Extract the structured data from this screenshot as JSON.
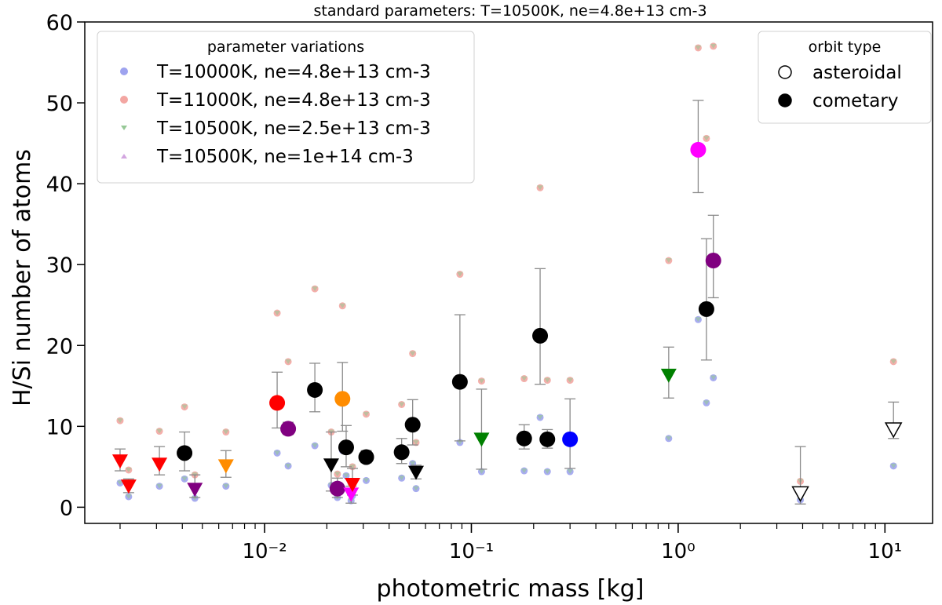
{
  "chart_data": {
    "type": "scatter",
    "title": "standard parameters: T=10500K, ne=4.8e+13 cm-3",
    "xlabel": "photometric mass [kg]",
    "ylabel": "H/Si number of atoms",
    "xscale": "log",
    "xlim": [
      0.00135,
      17
    ],
    "ylim": [
      -2,
      60
    ],
    "yticks": [
      0,
      10,
      20,
      30,
      40,
      50,
      60
    ],
    "ytick_labels": [
      "0",
      "10",
      "20",
      "30",
      "40",
      "50",
      "60"
    ],
    "xticks_major": [
      0.01,
      0.1,
      1,
      10
    ],
    "xtick_labels": [
      "10⁻²",
      "10⁻¹",
      "10⁰",
      "10¹"
    ],
    "legend_variations": {
      "title": "parameter variations",
      "placement": "top-left",
      "entries": [
        {
          "label": "T=10000K, ne=4.8e+13 cm-3",
          "color": "#9ea3ef",
          "marker": "circle"
        },
        {
          "label": "T=11000K, ne=4.8e+13 cm-3",
          "color": "#f3a6a2",
          "marker": "circle"
        },
        {
          "label": "T=10500K, ne=2.5e+13 cm-3",
          "color": "#96c896",
          "marker": "triangle-down"
        },
        {
          "label": "T=10500K, ne=1e+14 cm-3",
          "color": "#d3a6e0",
          "marker": "triangle-up"
        }
      ]
    },
    "legend_orbit": {
      "title": "orbit type",
      "placement": "top-right",
      "entries": [
        {
          "label": "asteroidal",
          "fill": "none"
        },
        {
          "label": "cometary",
          "fill": "#000000"
        }
      ]
    },
    "points": [
      {
        "x": 0.002,
        "y": 5.7,
        "color": "#ff0000",
        "marker": "down",
        "yerr": [
          4.5,
          7.2
        ],
        "var": [
          3.0,
          10.7
        ]
      },
      {
        "x": 0.0022,
        "y": 2.6,
        "color": "#ff0000",
        "marker": "down",
        "yerr": [
          1.8,
          3.5
        ],
        "var": [
          1.3,
          4.6
        ]
      },
      {
        "x": 0.0031,
        "y": 5.3,
        "color": "#ff0000",
        "marker": "down",
        "yerr": [
          4.0,
          7.5
        ],
        "var": [
          2.6,
          9.4
        ]
      },
      {
        "x": 0.0041,
        "y": 6.7,
        "color": "#000000",
        "marker": "circle",
        "yerr": [
          4.5,
          9.3
        ],
        "var": [
          3.5,
          12.4
        ]
      },
      {
        "x": 0.0046,
        "y": 2.2,
        "color": "#800080",
        "marker": "down",
        "yerr": [
          1.2,
          4.0
        ],
        "var": [
          1.1,
          4.0
        ]
      },
      {
        "x": 0.0065,
        "y": 5.1,
        "color": "#ff8c00",
        "marker": "down",
        "yerr": [
          3.7,
          7.0
        ],
        "var": [
          2.6,
          9.3
        ]
      },
      {
        "x": 0.0115,
        "y": 12.9,
        "color": "#ff0000",
        "marker": "circle",
        "yerr": [
          9.8,
          16.7
        ],
        "var": [
          6.7,
          24.0
        ]
      },
      {
        "x": 0.013,
        "y": 9.7,
        "color": "#800080",
        "marker": "circle",
        "yerr": [
          9.0,
          10.5
        ],
        "var": [
          5.1,
          18.0
        ]
      },
      {
        "x": 0.0175,
        "y": 14.5,
        "color": "#000000",
        "marker": "circle",
        "yerr": [
          11.8,
          17.8
        ],
        "var": [
          7.6,
          27.0
        ]
      },
      {
        "x": 0.021,
        "y": 5.2,
        "color": "#000000",
        "marker": "down",
        "yerr": [
          2.0,
          9.3
        ],
        "var": [
          2.7,
          9.3
        ]
      },
      {
        "x": 0.0225,
        "y": 2.3,
        "color": "#800080",
        "marker": "circle",
        "yerr": [
          1.2,
          3.6
        ],
        "var": [
          1.2,
          4.1
        ]
      },
      {
        "x": 0.0238,
        "y": 13.4,
        "color": "#ff8c00",
        "marker": "circle",
        "yerr": [
          9.4,
          17.9
        ],
        "var": [
          7.0,
          24.9
        ]
      },
      {
        "x": 0.0248,
        "y": 7.4,
        "color": "#000000",
        "marker": "circle",
        "yerr": [
          5.0,
          10.1
        ],
        "var": [
          3.9,
          13.6
        ]
      },
      {
        "x": 0.0262,
        "y": 1.6,
        "color": "#ff00ff",
        "marker": "down",
        "yerr": [
          0.5,
          2.6
        ],
        "var": [
          0.8,
          2.9
        ]
      },
      {
        "x": 0.0266,
        "y": 2.8,
        "color": "#ff0000",
        "marker": "down",
        "yerr": [
          1.5,
          4.8
        ],
        "var": [
          1.4,
          5.0
        ]
      },
      {
        "x": 0.031,
        "y": 6.2,
        "color": "#000000",
        "marker": "circle",
        "yerr": [
          5.5,
          7.0
        ],
        "var": [
          3.3,
          11.5
        ]
      },
      {
        "x": 0.046,
        "y": 6.8,
        "color": "#000000",
        "marker": "circle",
        "yerr": [
          5.4,
          8.5
        ],
        "var": [
          3.6,
          12.7
        ]
      },
      {
        "x": 0.052,
        "y": 10.2,
        "color": "#000000",
        "marker": "circle",
        "yerr": [
          7.7,
          13.3
        ],
        "var": [
          5.4,
          19.0
        ]
      },
      {
        "x": 0.054,
        "y": 4.3,
        "color": "#000000",
        "marker": "down",
        "yerr": [
          3.5,
          5.2
        ],
        "var": [
          2.3,
          8.0
        ]
      },
      {
        "x": 0.088,
        "y": 15.5,
        "color": "#000000",
        "marker": "circle",
        "yerr": [
          8.2,
          23.8
        ],
        "var": [
          8.0,
          28.8
        ]
      },
      {
        "x": 0.112,
        "y": 8.4,
        "color": "#008000",
        "marker": "down",
        "yerr": [
          4.7,
          14.6
        ],
        "var": [
          4.4,
          15.6
        ]
      },
      {
        "x": 0.18,
        "y": 8.5,
        "color": "#000000",
        "marker": "circle",
        "yerr": [
          7.2,
          10.2
        ],
        "var": [
          4.5,
          15.9
        ]
      },
      {
        "x": 0.215,
        "y": 21.2,
        "color": "#000000",
        "marker": "circle",
        "yerr": [
          15.2,
          29.5
        ],
        "var": [
          11.1,
          39.5
        ]
      },
      {
        "x": 0.233,
        "y": 8.4,
        "color": "#000000",
        "marker": "circle",
        "yerr": [
          7.3,
          9.6
        ],
        "var": [
          4.4,
          15.7
        ]
      },
      {
        "x": 0.3,
        "y": 8.4,
        "color": "#0000ff",
        "marker": "circle",
        "yerr": [
          4.8,
          13.4
        ],
        "var": [
          4.4,
          15.7
        ]
      },
      {
        "x": 0.9,
        "y": 16.3,
        "color": "#008000",
        "marker": "down",
        "yerr": [
          13.5,
          19.8
        ],
        "var": [
          8.5,
          30.5
        ]
      },
      {
        "x": 1.25,
        "y": 44.2,
        "color": "#ff00ff",
        "marker": "circle",
        "yerr": [
          38.9,
          50.3
        ],
        "var": [
          23.2,
          56.8
        ]
      },
      {
        "x": 1.37,
        "y": 24.5,
        "color": "#000000",
        "marker": "circle",
        "yerr": [
          18.2,
          33.2
        ],
        "var": [
          12.9,
          45.6
        ]
      },
      {
        "x": 1.48,
        "y": 30.5,
        "color": "#800080",
        "marker": "circle",
        "yerr": [
          25.9,
          36.1
        ],
        "var": [
          16.0,
          57.0
        ]
      },
      {
        "x": 3.9,
        "y": 1.7,
        "color": "none",
        "marker": "down",
        "yerr": [
          0.4,
          7.5
        ],
        "var": [
          0.9,
          3.2
        ]
      },
      {
        "x": 11.0,
        "y": 9.6,
        "color": "none",
        "marker": "down",
        "yerr": [
          8.5,
          13.0
        ],
        "var": [
          5.1,
          18.0
        ]
      }
    ]
  }
}
